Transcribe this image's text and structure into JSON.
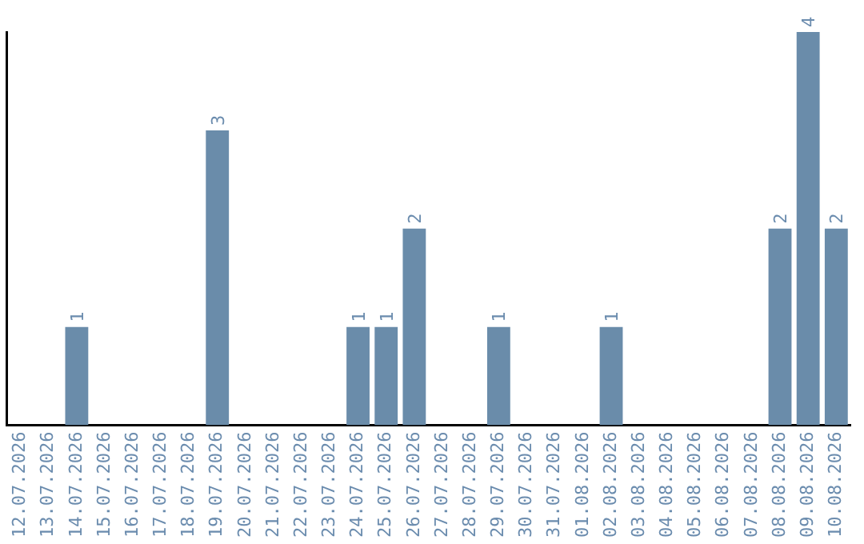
{
  "chart_data": {
    "type": "bar",
    "categories": [
      "12.07.2026",
      "13.07.2026",
      "14.07.2026",
      "15.07.2026",
      "16.07.2026",
      "17.07.2026",
      "18.07.2026",
      "19.07.2026",
      "20.07.2026",
      "21.07.2026",
      "22.07.2026",
      "23.07.2026",
      "24.07.2026",
      "25.07.2026",
      "26.07.2026",
      "27.07.2026",
      "28.07.2026",
      "29.07.2026",
      "30.07.2026",
      "31.07.2026",
      "01.08.2026",
      "02.08.2026",
      "03.08.2026",
      "04.08.2026",
      "05.08.2026",
      "06.08.2026",
      "07.08.2026",
      "08.08.2026",
      "09.08.2026",
      "10.08.2026"
    ],
    "values": [
      0,
      0,
      1,
      0,
      0,
      0,
      0,
      3,
      0,
      0,
      0,
      0,
      1,
      1,
      2,
      0,
      0,
      1,
      0,
      0,
      0,
      1,
      0,
      0,
      0,
      0,
      0,
      2,
      4,
      2
    ],
    "value_labels": [
      null,
      null,
      "1",
      null,
      null,
      null,
      null,
      "3",
      null,
      null,
      null,
      null,
      "1",
      "1",
      "2",
      null,
      null,
      "1",
      null,
      null,
      null,
      "1",
      null,
      null,
      null,
      null,
      null,
      "2",
      "4",
      "2"
    ],
    "color": "#6a8caa",
    "relative": false,
    "tick_labels": "x",
    "grid": false,
    "legend": false
  }
}
